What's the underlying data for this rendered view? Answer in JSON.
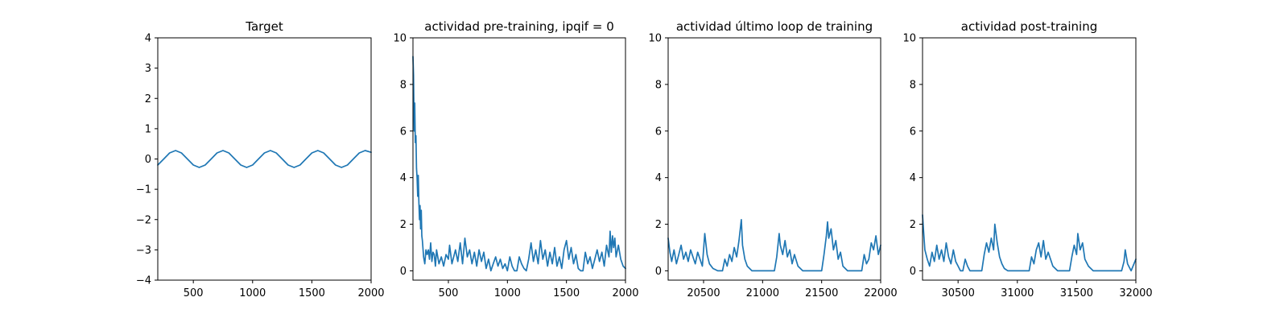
{
  "figure": {
    "line_color": "#1f77b4"
  },
  "chart_data": [
    {
      "type": "line",
      "title": "Target",
      "xlim": [
        200,
        2000
      ],
      "ylim": [
        -4,
        4
      ],
      "xticks": [
        500,
        1000,
        1500,
        2000
      ],
      "xtick_labels": [
        "500",
        "1000",
        "1500",
        "2000"
      ],
      "yticks": [
        -4,
        -3,
        -2,
        -1,
        0,
        1,
        2,
        3,
        4
      ],
      "ytick_labels": [
        "−4",
        "−3",
        "−2",
        "−1",
        "0",
        "1",
        "2",
        "3",
        "4"
      ],
      "grid": false,
      "series": [
        {
          "x": [
            200,
            250,
            300,
            350,
            400,
            450,
            500,
            550,
            600,
            650,
            700,
            750,
            800,
            850,
            900,
            950,
            1000,
            1050,
            1100,
            1150,
            1200,
            1250,
            1300,
            1350,
            1400,
            1450,
            1500,
            1550,
            1600,
            1650,
            1700,
            1750,
            1800,
            1850,
            1900,
            1950,
            2000
          ],
          "y": [
            -0.2,
            0.0,
            0.2,
            0.28,
            0.2,
            0.0,
            -0.2,
            -0.28,
            -0.2,
            0.0,
            0.2,
            0.28,
            0.2,
            0.0,
            -0.2,
            -0.28,
            -0.2,
            0.0,
            0.2,
            0.28,
            0.2,
            0.0,
            -0.2,
            -0.28,
            -0.2,
            0.0,
            0.2,
            0.28,
            0.2,
            0.0,
            -0.2,
            -0.28,
            -0.2,
            0.0,
            0.2,
            0.28,
            0.22
          ]
        }
      ]
    },
    {
      "type": "line",
      "title": "actividad pre-training, ipqif = 0",
      "xlim": [
        200,
        2000
      ],
      "ylim": [
        -0.4,
        10
      ],
      "xticks": [
        500,
        1000,
        1500,
        2000
      ],
      "xtick_labels": [
        "500",
        "1000",
        "1500",
        "2000"
      ],
      "yticks": [
        0,
        2,
        4,
        6,
        8,
        10
      ],
      "ytick_labels": [
        "0",
        "2",
        "4",
        "6",
        "8",
        "10"
      ],
      "grid": false,
      "series": [
        {
          "x": [
            200,
            205,
            210,
            215,
            220,
            225,
            230,
            235,
            240,
            245,
            250,
            255,
            260,
            265,
            270,
            275,
            280,
            290,
            300,
            310,
            320,
            330,
            340,
            350,
            360,
            370,
            380,
            390,
            400,
            420,
            440,
            460,
            480,
            500,
            510,
            530,
            560,
            580,
            600,
            620,
            640,
            660,
            680,
            700,
            720,
            740,
            760,
            780,
            800,
            820,
            840,
            860,
            880,
            900,
            920,
            940,
            960,
            980,
            1000,
            1020,
            1040,
            1060,
            1080,
            1100,
            1120,
            1140,
            1160,
            1180,
            1200,
            1220,
            1240,
            1260,
            1280,
            1300,
            1320,
            1340,
            1360,
            1380,
            1400,
            1420,
            1440,
            1460,
            1480,
            1500,
            1520,
            1540,
            1560,
            1580,
            1600,
            1620,
            1640,
            1660,
            1680,
            1700,
            1720,
            1740,
            1760,
            1780,
            1800,
            1820,
            1840,
            1860,
            1870,
            1880,
            1890,
            1900,
            1910,
            1920,
            1940,
            1960,
            1980,
            2000
          ],
          "y": [
            9.2,
            8.4,
            6.0,
            7.2,
            5.5,
            5.8,
            4.4,
            4.0,
            3.2,
            4.1,
            3.0,
            2.2,
            2.8,
            1.8,
            2.6,
            1.5,
            1.3,
            0.6,
            0.3,
            0.9,
            0.7,
            0.9,
            0.5,
            1.2,
            0.4,
            0.8,
            0.7,
            0.2,
            0.9,
            0.3,
            0.6,
            0.2,
            0.7,
            0.5,
            1.1,
            0.3,
            0.9,
            0.4,
            1.2,
            0.3,
            1.4,
            0.6,
            0.9,
            0.3,
            0.8,
            0.2,
            0.9,
            0.4,
            0.8,
            0.1,
            0.5,
            0.0,
            0.3,
            0.6,
            0.2,
            0.5,
            0.1,
            0.3,
            0.0,
            0.6,
            0.2,
            0.0,
            0.0,
            0.6,
            0.3,
            0.1,
            0.0,
            0.5,
            1.2,
            0.4,
            0.9,
            0.3,
            1.3,
            0.5,
            0.9,
            0.2,
            0.8,
            0.3,
            1.0,
            0.2,
            0.6,
            0.1,
            0.9,
            1.3,
            0.5,
            1.0,
            0.3,
            0.7,
            0.1,
            0.0,
            0.0,
            0.8,
            0.3,
            0.6,
            0.1,
            0.5,
            0.9,
            0.4,
            0.8,
            0.2,
            1.1,
            0.6,
            1.7,
            0.8,
            1.5,
            1.0,
            1.4,
            0.6,
            1.1,
            0.5,
            0.2,
            0.1
          ]
        }
      ]
    },
    {
      "type": "line",
      "title": "actividad último loop de training",
      "xlim": [
        20200,
        22000
      ],
      "ylim": [
        -0.4,
        10
      ],
      "xticks": [
        20500,
        21000,
        21500,
        22000
      ],
      "xtick_labels": [
        "20500",
        "21000",
        "21500",
        "22000"
      ],
      "yticks": [
        0,
        2,
        4,
        6,
        8,
        10
      ],
      "ytick_labels": [
        "0",
        "2",
        "4",
        "6",
        "8",
        "10"
      ],
      "grid": false,
      "series": [
        {
          "x": [
            20200,
            20215,
            20230,
            20250,
            20270,
            20290,
            20310,
            20330,
            20350,
            20370,
            20390,
            20410,
            20430,
            20450,
            20470,
            20490,
            20510,
            20530,
            20550,
            20580,
            20620,
            20660,
            20680,
            20700,
            20720,
            20740,
            20760,
            20780,
            20800,
            20820,
            20830,
            20850,
            20870,
            20890,
            20910,
            20940,
            20980,
            21020,
            21060,
            21100,
            21120,
            21140,
            21150,
            21170,
            21190,
            21210,
            21230,
            21250,
            21270,
            21300,
            21340,
            21380,
            21420,
            21460,
            21500,
            21520,
            21540,
            21550,
            21560,
            21580,
            21600,
            21620,
            21640,
            21660,
            21680,
            21720,
            21760,
            21800,
            21840,
            21860,
            21880,
            21900,
            21920,
            21940,
            21960,
            21980,
            22000
          ],
          "y": [
            1.4,
            0.8,
            0.4,
            0.9,
            0.3,
            0.7,
            1.1,
            0.5,
            0.8,
            0.4,
            0.9,
            0.6,
            0.3,
            0.8,
            0.5,
            0.2,
            1.6,
            0.7,
            0.3,
            0.1,
            0.0,
            0.0,
            0.5,
            0.2,
            0.7,
            0.4,
            1.0,
            0.6,
            1.3,
            2.2,
            1.1,
            0.5,
            0.2,
            0.1,
            0.0,
            0.0,
            0.0,
            0.0,
            0.0,
            0.0,
            0.6,
            1.6,
            1.1,
            0.7,
            1.3,
            0.6,
            0.9,
            0.3,
            0.7,
            0.2,
            0.0,
            0.0,
            0.0,
            0.0,
            0.0,
            0.7,
            1.5,
            2.1,
            1.4,
            1.8,
            0.9,
            1.3,
            0.5,
            0.8,
            0.2,
            0.0,
            0.0,
            0.0,
            0.0,
            0.7,
            0.3,
            0.5,
            1.2,
            0.9,
            1.5,
            0.7,
            1.1
          ]
        }
      ]
    },
    {
      "type": "line",
      "title": "actividad post-training",
      "xlim": [
        30200,
        32000
      ],
      "ylim": [
        -0.4,
        10
      ],
      "xticks": [
        30500,
        31000,
        31500,
        32000
      ],
      "xtick_labels": [
        "30500",
        "31000",
        "31500",
        "32000"
      ],
      "yticks": [
        0,
        2,
        4,
        6,
        8,
        10
      ],
      "ytick_labels": [
        "0",
        "2",
        "4",
        "6",
        "8",
        "10"
      ],
      "grid": false,
      "series": [
        {
          "x": [
            30200,
            30210,
            30220,
            30240,
            30260,
            30280,
            30300,
            30320,
            30340,
            30360,
            30380,
            30400,
            30420,
            30440,
            30460,
            30480,
            30500,
            30520,
            30540,
            30560,
            30580,
            30600,
            30620,
            30640,
            30660,
            30680,
            30700,
            30720,
            30740,
            30760,
            30780,
            30800,
            30810,
            30830,
            30850,
            30870,
            30890,
            30920,
            30960,
            31000,
            31040,
            31080,
            31100,
            31120,
            31140,
            31160,
            31180,
            31200,
            31220,
            31240,
            31260,
            31300,
            31340,
            31380,
            31420,
            31440,
            31460,
            31480,
            31500,
            31510,
            31530,
            31550,
            31570,
            31600,
            31640,
            31680,
            31720,
            31760,
            31800,
            31840,
            31880,
            31900,
            31910,
            31930,
            31960,
            32000
          ],
          "y": [
            2.4,
            1.6,
            0.9,
            0.5,
            0.2,
            0.8,
            0.4,
            1.1,
            0.5,
            0.9,
            0.4,
            1.2,
            0.6,
            0.3,
            0.9,
            0.4,
            0.2,
            0.0,
            0.0,
            0.5,
            0.2,
            0.0,
            0.0,
            0.0,
            0.0,
            0.0,
            0.0,
            0.7,
            1.2,
            0.8,
            1.4,
            0.9,
            2.0,
            1.2,
            0.6,
            0.3,
            0.1,
            0.0,
            0.0,
            0.0,
            0.0,
            0.0,
            0.0,
            0.6,
            0.3,
            0.9,
            1.2,
            0.6,
            1.3,
            0.5,
            0.8,
            0.2,
            0.0,
            0.0,
            0.0,
            0.0,
            0.6,
            1.1,
            0.7,
            1.6,
            0.9,
            1.2,
            0.5,
            0.2,
            0.0,
            0.0,
            0.0,
            0.0,
            0.0,
            0.0,
            0.0,
            0.4,
            0.9,
            0.3,
            0.0,
            0.5
          ]
        }
      ]
    }
  ]
}
